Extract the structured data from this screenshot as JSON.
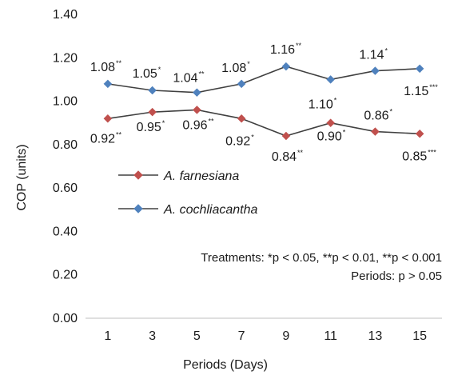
{
  "chart_data": {
    "type": "line",
    "x": [
      1,
      3,
      5,
      7,
      9,
      11,
      13,
      15
    ],
    "xlabel": "Periods (Days)",
    "ylabel": "COP (units)",
    "ylim": [
      0,
      1.4
    ],
    "yticks": [
      "0.00",
      "0.20",
      "0.40",
      "0.60",
      "0.80",
      "1.00",
      "1.20",
      "1.40"
    ],
    "grid": false,
    "legend_position": "center-left",
    "series": [
      {
        "name": "A. farnesiana",
        "color": "#c0504d",
        "marker": "diamond",
        "values": [
          0.92,
          0.95,
          0.96,
          0.92,
          0.84,
          0.9,
          0.86,
          0.85
        ],
        "labels": [
          "0.92",
          "0.95",
          "0.96",
          "0.92",
          "0.84",
          "0.90",
          "0.86",
          "0.85"
        ],
        "significance": [
          "**",
          "*",
          "**",
          "*",
          "**",
          "*",
          "*",
          "***"
        ]
      },
      {
        "name": "A. cochliacantha",
        "color": "#4f81bd",
        "marker": "diamond",
        "values": [
          1.08,
          1.05,
          1.04,
          1.08,
          1.16,
          1.1,
          1.14,
          1.15
        ],
        "labels": [
          "1.08",
          "1.05",
          "1.04",
          "1.08",
          "1.16",
          "1.10",
          "1.14",
          "1.15"
        ],
        "significance": [
          "**",
          "*",
          "**",
          "*",
          "**",
          "*",
          "*",
          "***"
        ]
      }
    ],
    "annotations": [
      "Treatments: *p < 0.05, **p < 0.01, **p < 0.001",
      "Periods: p > 0.05"
    ]
  }
}
